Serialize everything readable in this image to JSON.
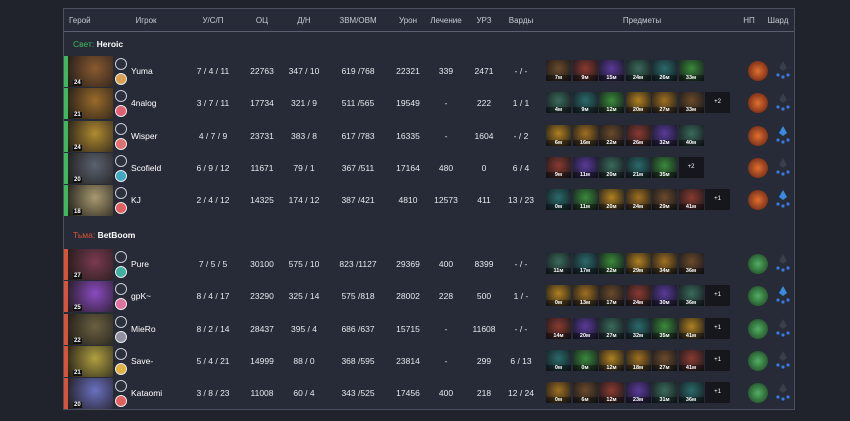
{
  "headers": [
    "Герой",
    "Игрок",
    "У/С/П",
    "ОЦ",
    "Д/Н",
    "ЗВМ/ОВМ",
    "Урон",
    "Лечение",
    "УРЗ",
    "Варды",
    "Предметы",
    "НП",
    "Шард"
  ],
  "colors": {
    "radiant": "#3dbb5a",
    "dire": "#d9533a",
    "background": "#272b37"
  },
  "teams": [
    {
      "side_label": "Свет:",
      "name": "Heroic",
      "color": "#3dbb5a",
      "players": [
        {
          "level": "24",
          "player": "Yuma",
          "kda": "7 / 4 / 11",
          "nw": "22763",
          "lh_dn": "347 / 10",
          "gpm_xpm": "619 /768",
          "damage": "22321",
          "heal": "339",
          "tower": "2471",
          "wards": "- / -",
          "items": [
            "7м",
            "9м",
            "15м",
            "24м",
            "26м",
            "33м"
          ],
          "extra": "",
          "shard": false,
          "hero_color": "#8a5a30"
        },
        {
          "level": "21",
          "player": "4nalog",
          "kda": "3 / 7 / 11",
          "nw": "17734",
          "lh_dn": "321 / 9",
          "gpm_xpm": "511 /565",
          "damage": "19549",
          "heal": "-",
          "tower": "222",
          "wards": "1 / 1",
          "items": [
            "4м",
            "9м",
            "12м",
            "20м",
            "27м",
            "33м"
          ],
          "extra": "+2",
          "shard": false,
          "hero_color": "#9a6a2a"
        },
        {
          "level": "24",
          "player": "Wisper",
          "kda": "4 / 7 / 9",
          "nw": "23731",
          "lh_dn": "383 / 8",
          "gpm_xpm": "617 /783",
          "damage": "16335",
          "heal": "-",
          "tower": "1604",
          "wards": "- / 2",
          "items": [
            "6м",
            "16м",
            "22м",
            "26м",
            "32м",
            "40м"
          ],
          "extra": "",
          "shard": true,
          "hero_color": "#b08a30"
        },
        {
          "level": "20",
          "player": "Scofield",
          "kda": "6 / 9 / 12",
          "nw": "11671",
          "lh_dn": "79 / 1",
          "gpm_xpm": "367 /511",
          "damage": "17164",
          "heal": "480",
          "tower": "0",
          "wards": "6 / 4",
          "items": [
            "9м",
            "11м",
            "20м",
            "21м",
            "35м"
          ],
          "extra": "+2",
          "shard": false,
          "hero_color": "#5a6270"
        },
        {
          "level": "18",
          "player": "KJ",
          "kda": "2 / 4 / 12",
          "nw": "14325",
          "lh_dn": "174 / 12",
          "gpm_xpm": "387 /421",
          "damage": "4810",
          "heal": "12573",
          "tower": "411",
          "wards": "13 / 23",
          "items": [
            "0м",
            "11м",
            "20м",
            "24м",
            "29м",
            "41м"
          ],
          "extra": "+1",
          "shard": true,
          "hero_color": "#a89a70"
        }
      ]
    },
    {
      "side_label": "Тьма:",
      "name": "BetBoom",
      "color": "#d9533a",
      "players": [
        {
          "level": "27",
          "player": "Pure",
          "kda": "7 / 5 / 5",
          "nw": "30100",
          "lh_dn": "575 / 10",
          "gpm_xpm": "823 /1127",
          "damage": "29369",
          "heal": "400",
          "tower": "8399",
          "wards": "- / -",
          "items": [
            "11м",
            "17м",
            "22м",
            "29м",
            "34м",
            "36м"
          ],
          "extra": "",
          "shard": false,
          "hero_color": "#7a3a50"
        },
        {
          "level": "25",
          "player": "gpK~",
          "kda": "8 / 4 / 17",
          "nw": "23290",
          "lh_dn": "325 / 14",
          "gpm_xpm": "575 /818",
          "damage": "28002",
          "heal": "228",
          "tower": "500",
          "wards": "1 / -",
          "items": [
            "0м",
            "13м",
            "17м",
            "24м",
            "30м",
            "36м"
          ],
          "extra": "+1",
          "shard": true,
          "hero_color": "#8a4ac0"
        },
        {
          "level": "22",
          "player": "MieRo",
          "kda": "8 / 2 / 14",
          "nw": "28437",
          "lh_dn": "395 / 4",
          "gpm_xpm": "686 /637",
          "damage": "15715",
          "heal": "-",
          "tower": "11608",
          "wards": "- / -",
          "items": [
            "14м",
            "20м",
            "27м",
            "32м",
            "35м",
            "41м"
          ],
          "extra": "+1",
          "shard": false,
          "hero_color": "#6a6040"
        },
        {
          "level": "21",
          "player": "Save-",
          "kda": "5 / 4 / 21",
          "nw": "14999",
          "lh_dn": "88 / 0",
          "gpm_xpm": "368 /595",
          "damage": "23814",
          "heal": "-",
          "tower": "299",
          "wards": "6 / 13",
          "items": [
            "0м",
            "0м",
            "12м",
            "18м",
            "27м",
            "41м"
          ],
          "extra": "+1",
          "shard": false,
          "hero_color": "#b0a040"
        },
        {
          "level": "20",
          "player": "Kataomi",
          "kda": "3 / 8 / 23",
          "nw": "11008",
          "lh_dn": "60 / 4",
          "gpm_xpm": "343 /525",
          "damage": "17456",
          "heal": "400",
          "tower": "218",
          "wards": "12 / 24",
          "items": [
            "0м",
            "6м",
            "12м",
            "23м",
            "31м",
            "36м"
          ],
          "extra": "+1",
          "shard": false,
          "hero_color": "#6a70c0"
        }
      ]
    }
  ]
}
